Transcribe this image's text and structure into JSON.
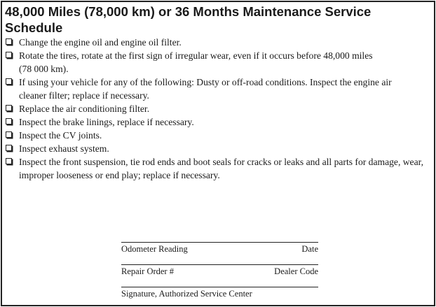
{
  "title": "48,000 Miles (78,000 km) or 36 Months Maintenance Service Schedule",
  "items": [
    "Change the engine oil and engine oil filter.",
    "Rotate the tires, rotate at the first sign of irregular wear, even if it occurs before 48,000 miles (78 000 km).",
    "If using your vehicle for any of the following: Dusty or off-road conditions. Inspect the engine air cleaner filter; replace if necessary.",
    "Replace the air conditioning filter.",
    "Inspect the brake linings, replace if necessary.",
    "Inspect the CV joints.",
    "Inspect exhaust system.",
    "Inspect the front suspension, tie rod ends and boot seals for cracks or leaks and all parts for damage, wear, improper looseness or end play; replace if necessary."
  ],
  "signature_block": {
    "odometer": "Odometer Reading",
    "date": "Date",
    "repair_order": "Repair Order #",
    "dealer_code": "Dealer Code",
    "signature": "Signature, Authorized Service Center"
  }
}
